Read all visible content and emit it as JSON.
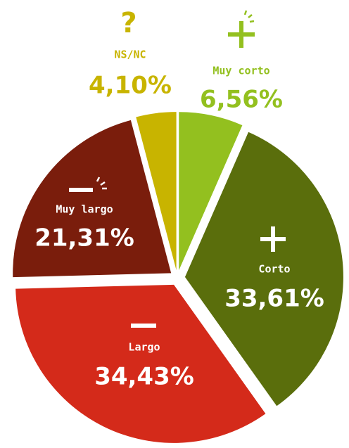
{
  "chart_data": {
    "type": "pie",
    "categories": [
      "Muy corto",
      "Corto",
      "Largo",
      "Muy largo",
      "NS/NC"
    ],
    "values": [
      6.56,
      33.61,
      34.43,
      21.31,
      4.1
    ],
    "value_labels": [
      "6,56%",
      "33,61%",
      "34,43%",
      "21,31%",
      "4,10%"
    ],
    "colors": [
      "#93c01f",
      "#5a6e0c",
      "#d42a1a",
      "#7a1d0c",
      "#c8b400"
    ]
  }
}
